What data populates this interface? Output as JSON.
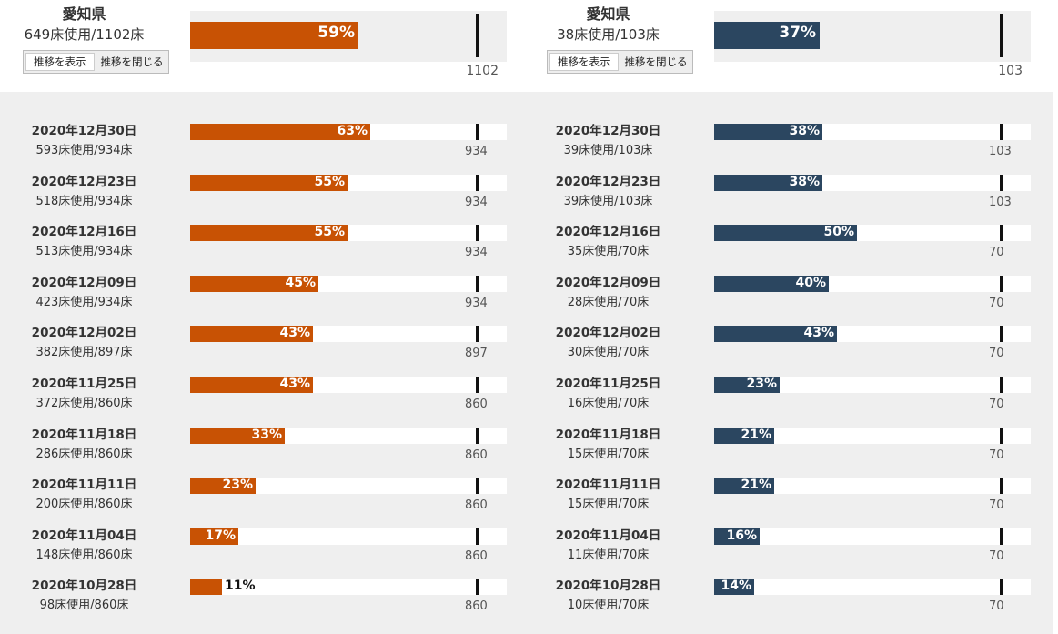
{
  "chart_data": [
    {
      "type": "bar",
      "title": "愛知県",
      "color": "#c85204",
      "current": {
        "used_label": "649床使用/1102床",
        "percent": 59,
        "percent_label": "59%",
        "capacity_label": "1102"
      },
      "buttons": {
        "show": "推移を表示",
        "hide": "推移を閉じる"
      },
      "history": [
        {
          "date": "2020年12月30日",
          "used_label": "593床使用/934床",
          "percent": 63,
          "percent_label": "63%",
          "capacity_label": "934"
        },
        {
          "date": "2020年12月23日",
          "used_label": "518床使用/934床",
          "percent": 55,
          "percent_label": "55%",
          "capacity_label": "934"
        },
        {
          "date": "2020年12月16日",
          "used_label": "513床使用/934床",
          "percent": 55,
          "percent_label": "55%",
          "capacity_label": "934"
        },
        {
          "date": "2020年12月09日",
          "used_label": "423床使用/934床",
          "percent": 45,
          "percent_label": "45%",
          "capacity_label": "934"
        },
        {
          "date": "2020年12月02日",
          "used_label": "382床使用/897床",
          "percent": 43,
          "percent_label": "43%",
          "capacity_label": "897"
        },
        {
          "date": "2020年11月25日",
          "used_label": "372床使用/860床",
          "percent": 43,
          "percent_label": "43%",
          "capacity_label": "860"
        },
        {
          "date": "2020年11月18日",
          "used_label": "286床使用/860床",
          "percent": 33,
          "percent_label": "33%",
          "capacity_label": "860"
        },
        {
          "date": "2020年11月11日",
          "used_label": "200床使用/860床",
          "percent": 23,
          "percent_label": "23%",
          "capacity_label": "860"
        },
        {
          "date": "2020年11月04日",
          "used_label": "148床使用/860床",
          "percent": 17,
          "percent_label": "17%",
          "capacity_label": "860"
        },
        {
          "date": "2020年10月28日",
          "used_label": "98床使用/860床",
          "percent": 11,
          "percent_label": "11%",
          "capacity_label": "860"
        }
      ]
    },
    {
      "type": "bar",
      "title": "愛知県",
      "color": "#2b4660",
      "current": {
        "used_label": "38床使用/103床",
        "percent": 37,
        "percent_label": "37%",
        "capacity_label": "103"
      },
      "buttons": {
        "show": "推移を表示",
        "hide": "推移を閉じる"
      },
      "history": [
        {
          "date": "2020年12月30日",
          "used_label": "39床使用/103床",
          "percent": 38,
          "percent_label": "38%",
          "capacity_label": "103"
        },
        {
          "date": "2020年12月23日",
          "used_label": "39床使用/103床",
          "percent": 38,
          "percent_label": "38%",
          "capacity_label": "103"
        },
        {
          "date": "2020年12月16日",
          "used_label": "35床使用/70床",
          "percent": 50,
          "percent_label": "50%",
          "capacity_label": "70"
        },
        {
          "date": "2020年12月09日",
          "used_label": "28床使用/70床",
          "percent": 40,
          "percent_label": "40%",
          "capacity_label": "70"
        },
        {
          "date": "2020年12月02日",
          "used_label": "30床使用/70床",
          "percent": 43,
          "percent_label": "43%",
          "capacity_label": "70"
        },
        {
          "date": "2020年11月25日",
          "used_label": "16床使用/70床",
          "percent": 23,
          "percent_label": "23%",
          "capacity_label": "70"
        },
        {
          "date": "2020年11月18日",
          "used_label": "15床使用/70床",
          "percent": 21,
          "percent_label": "21%",
          "capacity_label": "70"
        },
        {
          "date": "2020年11月11日",
          "used_label": "15床使用/70床",
          "percent": 21,
          "percent_label": "21%",
          "capacity_label": "70"
        },
        {
          "date": "2020年11月04日",
          "used_label": "11床使用/70床",
          "percent": 16,
          "percent_label": "16%",
          "capacity_label": "70"
        },
        {
          "date": "2020年10月28日",
          "used_label": "10床使用/70床",
          "percent": 14,
          "percent_label": "14%",
          "capacity_label": "70"
        }
      ]
    }
  ]
}
